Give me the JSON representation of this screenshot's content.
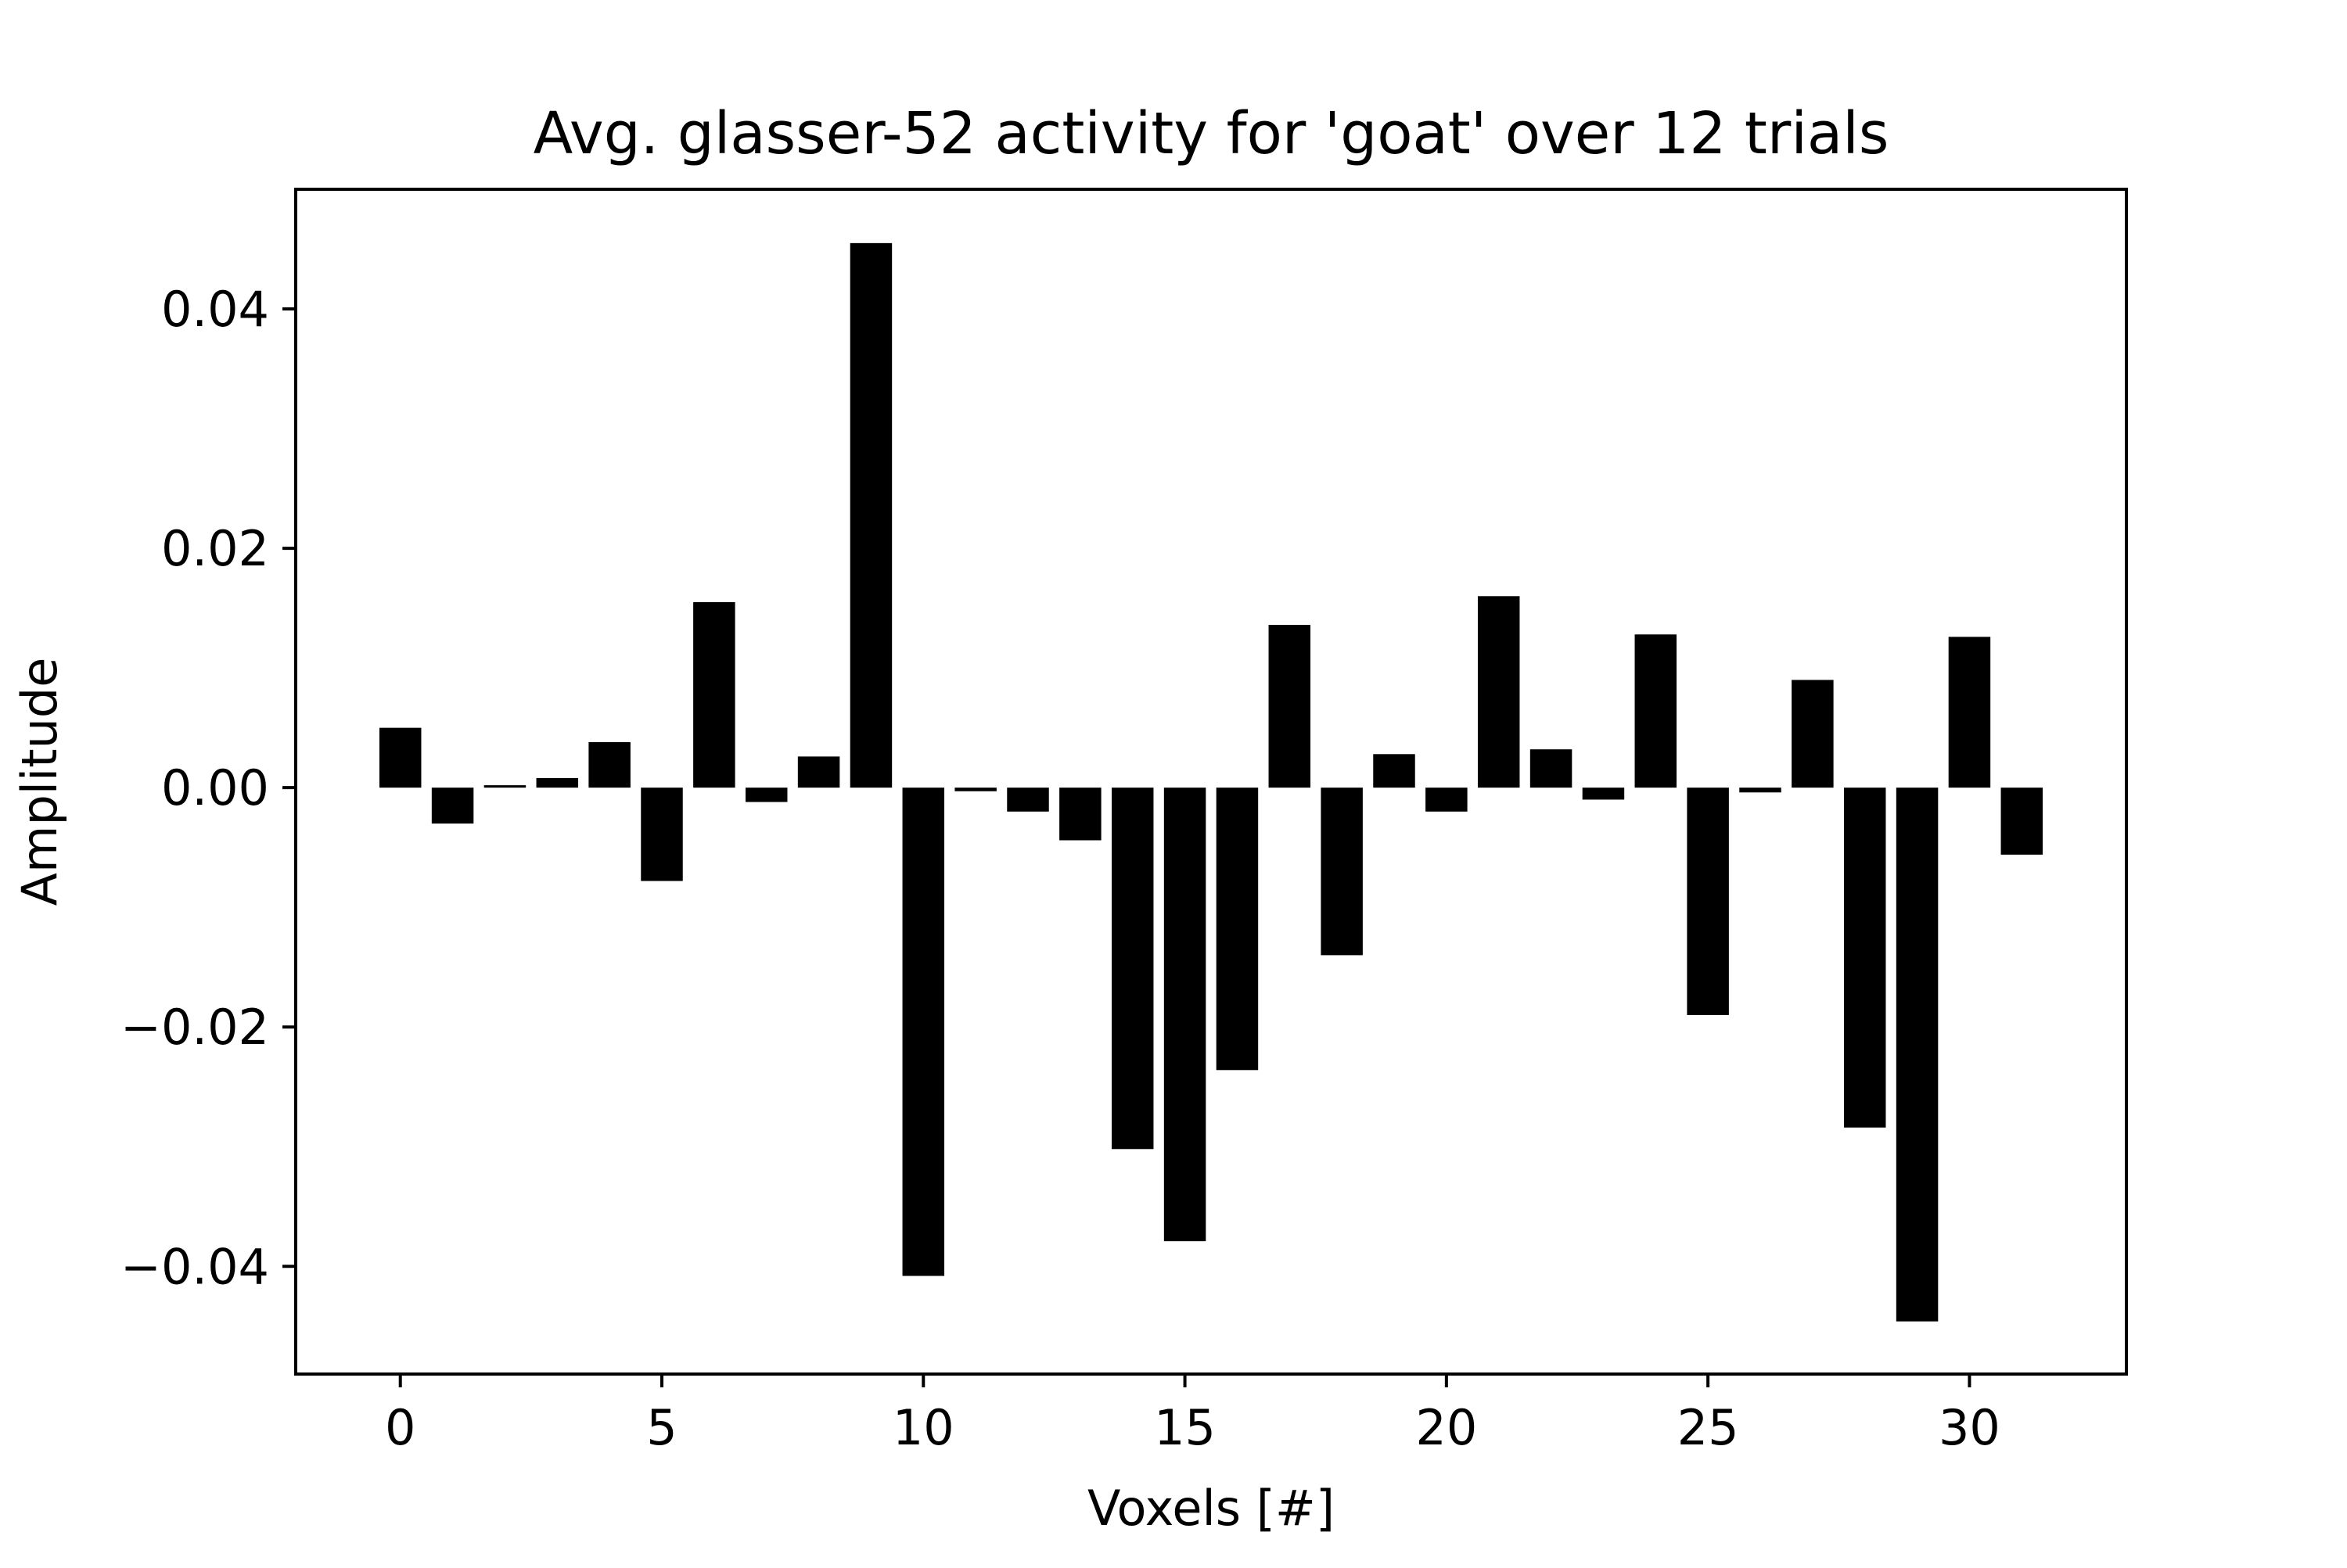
{
  "chart_data": {
    "type": "bar",
    "title": "Avg. glasser-52 activity for 'goat' over 12 trials",
    "xlabel": "Voxels [#]",
    "ylabel": "Amplitude",
    "x": [
      0,
      1,
      2,
      3,
      4,
      5,
      6,
      7,
      8,
      9,
      10,
      11,
      12,
      13,
      14,
      15,
      16,
      17,
      18,
      19,
      20,
      21,
      22,
      23,
      24,
      25,
      26,
      27,
      28,
      29,
      30,
      31
    ],
    "values": [
      0.005,
      -0.003,
      0.0002,
      0.0008,
      0.0038,
      -0.0078,
      0.0155,
      -0.0012,
      0.0026,
      0.0455,
      -0.0408,
      -0.0003,
      -0.002,
      -0.0044,
      -0.0302,
      -0.0379,
      -0.0236,
      0.0136,
      -0.014,
      0.0028,
      -0.002,
      0.016,
      0.0032,
      -0.001,
      0.0128,
      -0.019,
      -0.0004,
      0.009,
      -0.0284,
      -0.0446,
      0.0126,
      -0.0056
    ],
    "xlim": [
      -2,
      33
    ],
    "ylim": [
      -0.049,
      0.05
    ],
    "xticks": [
      0,
      5,
      10,
      15,
      20,
      25,
      30
    ],
    "xtick_labels": [
      "0",
      "5",
      "10",
      "15",
      "20",
      "25",
      "30"
    ],
    "yticks": [
      -0.04,
      -0.02,
      0.0,
      0.02,
      0.04
    ],
    "ytick_labels": [
      "−0.04",
      "−0.02",
      "0.00",
      "0.02",
      "0.04"
    ],
    "bar_color": "#000000",
    "grid": false,
    "legend": "none"
  }
}
